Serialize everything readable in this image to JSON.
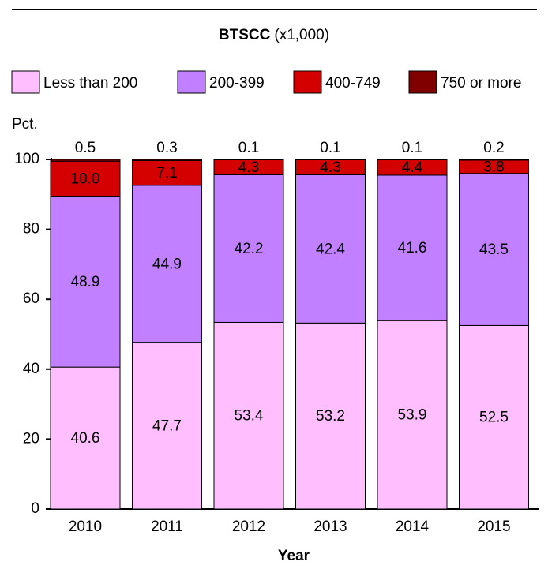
{
  "chart_data": {
    "type": "stacked_bar",
    "title": "BTSCC",
    "subtitle": "(x1,000)",
    "y_label": "Pct.",
    "x_label": "Year",
    "categories": [
      "2010",
      "2011",
      "2012",
      "2013",
      "2014",
      "2015"
    ],
    "series": [
      {
        "name": "Less than 200",
        "color": "#ffbfff",
        "values": [
          40.6,
          47.7,
          53.4,
          53.2,
          53.9,
          52.5
        ]
      },
      {
        "name": "200-399",
        "color": "#c080ff",
        "values": [
          48.9,
          44.9,
          42.2,
          42.4,
          41.6,
          43.5
        ]
      },
      {
        "name": "400-749",
        "color": "#d40000",
        "values": [
          10,
          7.1,
          4.3,
          4.3,
          4.4,
          3.8
        ],
        "value_labels": [
          "10.0",
          "7.1",
          "4.3",
          "4.3",
          "4.4",
          "3.8"
        ]
      },
      {
        "name": "750 or more",
        "color": "#800000",
        "values": [
          0.5,
          0.3,
          0.1,
          0.1,
          0.1,
          0.2
        ]
      }
    ],
    "ylim": [
      0,
      100
    ],
    "yticks": [
      0,
      20,
      40,
      60,
      80,
      100
    ]
  }
}
